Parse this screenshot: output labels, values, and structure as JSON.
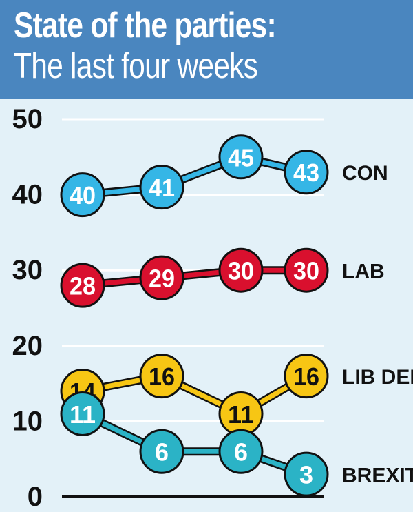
{
  "header": {
    "title": "State of the parties:",
    "subtitle": "The last four weeks"
  },
  "chart_data": {
    "type": "line",
    "title": "State of the parties:",
    "subtitle": "The last four weeks",
    "x": [
      1,
      2,
      3,
      4
    ],
    "ylim": [
      0,
      50
    ],
    "yticks": [
      0,
      10,
      20,
      30,
      40,
      50
    ],
    "grid": true,
    "series": [
      {
        "name": "CON",
        "values": [
          40,
          41,
          45,
          43
        ],
        "color": "#35b6e6",
        "text_color": "#ffffff"
      },
      {
        "name": "LAB",
        "values": [
          28,
          29,
          30,
          30
        ],
        "color": "#d9102e",
        "text_color": "#ffffff"
      },
      {
        "name": "LIB DEM",
        "values": [
          14,
          16,
          11,
          16
        ],
        "color": "#f7c614",
        "text_color": "#111111"
      },
      {
        "name": "BREXIT",
        "values": [
          11,
          6,
          6,
          3
        ],
        "color": "#2bb3c6",
        "text_color": "#ffffff"
      }
    ]
  }
}
